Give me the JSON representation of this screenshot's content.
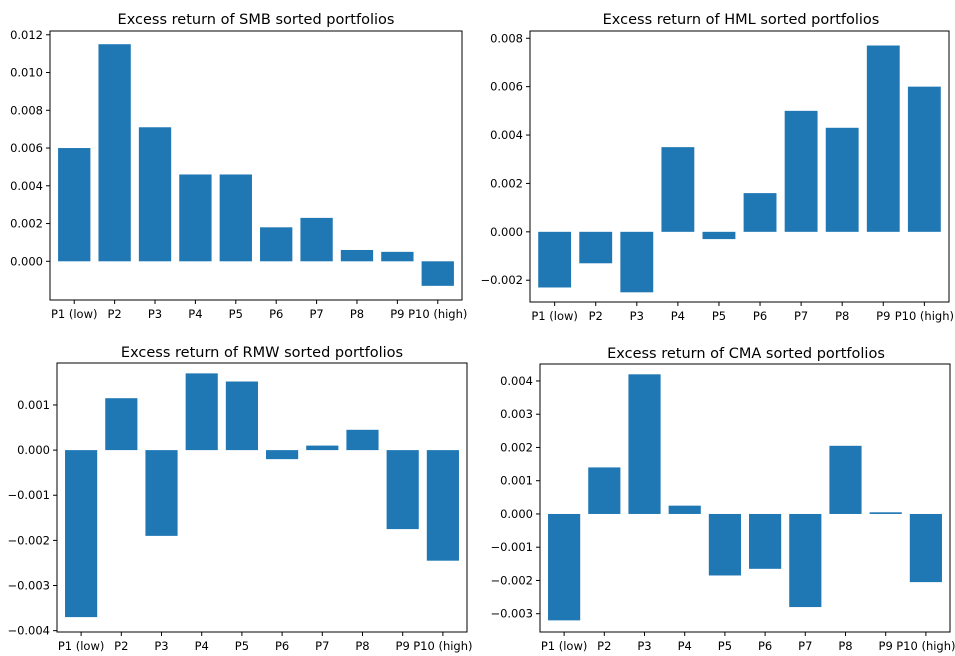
{
  "chart_data": [
    {
      "type": "bar",
      "title": "Excess return of SMB sorted portfolios",
      "categories": [
        "P1 (low)",
        "P2",
        "P3",
        "P4",
        "P5",
        "P6",
        "P7",
        "P8",
        "P9",
        "P10 (high)"
      ],
      "values": [
        0.006,
        0.0115,
        0.0071,
        0.0046,
        0.0046,
        0.0018,
        0.0023,
        0.0006,
        0.0005,
        -0.0013
      ],
      "yticks": [
        "0.000",
        "0.002",
        "0.004",
        "0.006",
        "0.008",
        "0.010",
        "0.012"
      ],
      "ytick_values": [
        0,
        0.002,
        0.004,
        0.006,
        0.008,
        0.01,
        0.012
      ],
      "ylim": [
        -0.00205,
        0.0122
      ],
      "color": "#1f77b4",
      "grid": false
    },
    {
      "type": "bar",
      "title": "Excess return of HML sorted portfolios",
      "categories": [
        "P1 (low)",
        "P2",
        "P3",
        "P4",
        "P5",
        "P6",
        "P7",
        "P8",
        "P9",
        "P10 (high)"
      ],
      "values": [
        -0.0023,
        -0.0013,
        -0.0025,
        0.0035,
        -0.0003,
        0.0016,
        0.005,
        0.0043,
        0.0077,
        0.006
      ],
      "yticks": [
        "−0.002",
        "0.000",
        "0.002",
        "0.004",
        "0.006",
        "0.008"
      ],
      "ytick_values": [
        -0.002,
        0,
        0.002,
        0.004,
        0.006,
        0.008
      ],
      "ylim": [
        -0.0029,
        0.0083
      ],
      "color": "#1f77b4",
      "grid": false
    },
    {
      "type": "bar",
      "title": "Excess return of RMW sorted portfolios",
      "categories": [
        "P1 (low)",
        "P2",
        "P3",
        "P4",
        "P5",
        "P6",
        "P7",
        "P8",
        "P9",
        "P10 (high)"
      ],
      "values": [
        -0.0037,
        0.00115,
        -0.0019,
        0.0017,
        0.00152,
        -0.0002,
        0.0001,
        0.00045,
        -0.00175,
        -0.00245
      ],
      "yticks": [
        "−0.004",
        "−0.003",
        "−0.002",
        "−0.001",
        "0.000",
        "0.001"
      ],
      "ytick_values": [
        -0.004,
        -0.003,
        -0.002,
        -0.001,
        0,
        0.001
      ],
      "ylim": [
        -0.00403,
        0.00193
      ],
      "color": "#1f77b4",
      "grid": false
    },
    {
      "type": "bar",
      "title": "Excess return of CMA sorted portfolios",
      "categories": [
        "P1 (low)",
        "P2",
        "P3",
        "P4",
        "P5",
        "P6",
        "P7",
        "P8",
        "P9",
        "P10 (high)"
      ],
      "values": [
        -0.0032,
        0.0014,
        0.0042,
        0.00025,
        -0.00185,
        -0.00165,
        -0.0028,
        0.00205,
        5e-05,
        -0.00205
      ],
      "yticks": [
        "−0.003",
        "−0.002",
        "−0.001",
        "0.000",
        "0.001",
        "0.002",
        "0.003",
        "0.004"
      ],
      "ytick_values": [
        -0.003,
        -0.002,
        -0.001,
        0,
        0.001,
        0.002,
        0.003,
        0.004
      ],
      "ylim": [
        -0.00355,
        0.00451
      ],
      "color": "#1f77b4",
      "grid": false
    }
  ]
}
